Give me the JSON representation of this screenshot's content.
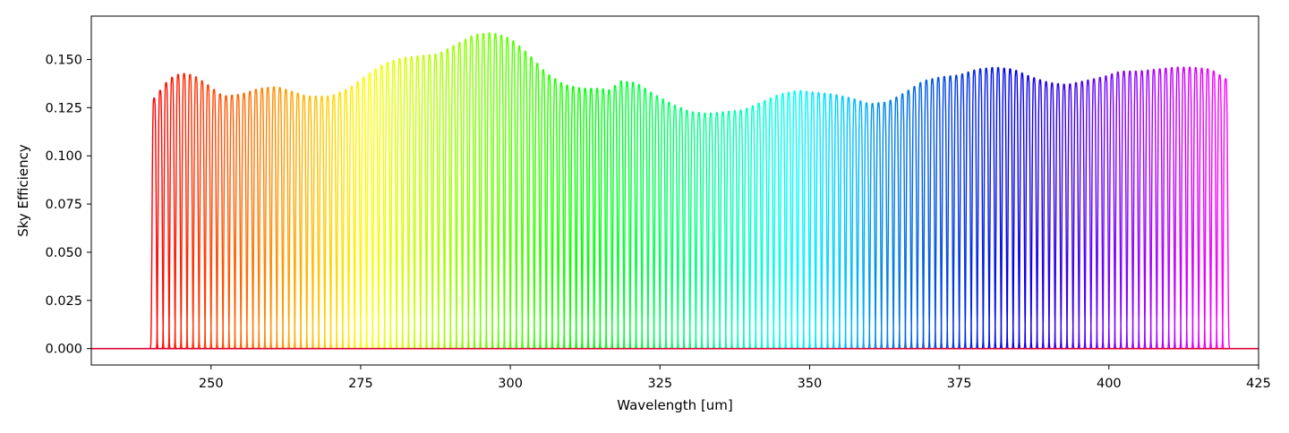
{
  "chart_data": {
    "type": "line",
    "title": "",
    "xlabel": "Wavelength [um]",
    "ylabel": "Sky Efficiency",
    "xlim": [
      230,
      425
    ],
    "ylim": [
      -0.0085,
      0.1725
    ],
    "x_ticks": [
      250,
      275,
      300,
      325,
      350,
      375,
      400,
      425
    ],
    "y_ticks": [
      0.0,
      0.025,
      0.05,
      0.075,
      0.1,
      0.125,
      0.15
    ],
    "x_tick_labels": [
      "250",
      "275",
      "300",
      "325",
      "350",
      "375",
      "400",
      "425"
    ],
    "y_tick_labels": [
      "0.000",
      "0.025",
      "0.050",
      "0.075",
      "0.100",
      "0.125",
      "0.150"
    ],
    "grid": false,
    "legend": "none",
    "baseline": {
      "value": 0.0,
      "color": "#dd0033"
    },
    "colormap": "gist_rainbow (red → orange → yellow → green → cyan → blue → magenta)",
    "channels": {
      "count": 180,
      "x_start": 240.5,
      "x_end": 419.5,
      "spacing": 1.0,
      "shape": "narrow bandpass peak per channel",
      "peak_envelope": {
        "x": [
          240.5,
          243,
          245,
          247,
          249,
          252,
          255,
          258,
          261,
          263,
          266,
          270,
          273,
          276,
          279,
          282,
          285,
          288,
          291,
          294,
          297,
          300,
          303,
          306,
          309,
          312,
          315,
          317,
          318,
          321,
          324,
          327,
          330,
          333,
          336,
          339,
          342,
          345,
          348,
          351,
          354,
          357,
          360,
          363,
          366,
          369,
          372,
          375,
          378,
          381,
          384,
          387,
          390,
          393,
          396,
          399,
          402,
          405,
          408,
          411,
          414,
          417,
          419.5
        ],
        "y": [
          0.13,
          0.14,
          0.143,
          0.142,
          0.138,
          0.131,
          0.132,
          0.135,
          0.136,
          0.134,
          0.131,
          0.131,
          0.135,
          0.142,
          0.148,
          0.151,
          0.152,
          0.153,
          0.158,
          0.163,
          0.164,
          0.161,
          0.153,
          0.143,
          0.137,
          0.135,
          0.135,
          0.134,
          0.139,
          0.138,
          0.132,
          0.127,
          0.123,
          0.122,
          0.123,
          0.124,
          0.128,
          0.132,
          0.134,
          0.133,
          0.132,
          0.13,
          0.127,
          0.128,
          0.133,
          0.139,
          0.141,
          0.142,
          0.145,
          0.146,
          0.145,
          0.141,
          0.138,
          0.137,
          0.139,
          0.141,
          0.144,
          0.144,
          0.145,
          0.146,
          0.146,
          0.145,
          0.14
        ]
      }
    }
  }
}
